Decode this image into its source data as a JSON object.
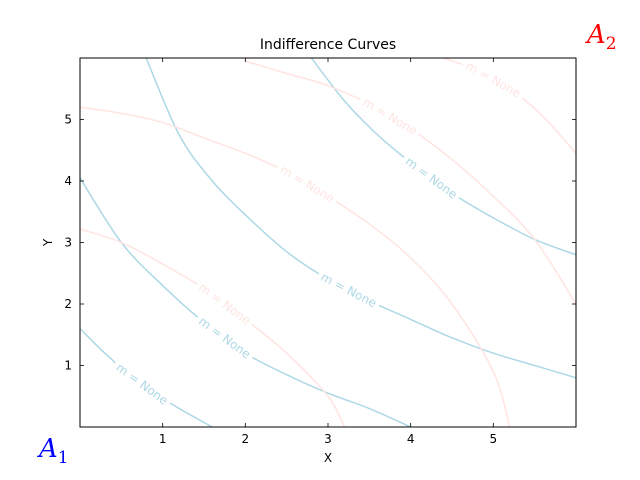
{
  "chart_data": {
    "type": "line",
    "title": "Indifference Curves",
    "xlabel": "X",
    "ylabel": "Y",
    "xlim": [
      0,
      6
    ],
    "ylim": [
      0,
      6
    ],
    "xticks": [
      1,
      2,
      3,
      4,
      5
    ],
    "yticks": [
      1,
      2,
      3,
      4,
      5
    ],
    "grid": false,
    "agents": [
      {
        "label": "A",
        "subscript": "1",
        "color": "#0000ff",
        "corner": "bottom-left"
      },
      {
        "label": "A",
        "subscript": "2",
        "color": "#ff0000",
        "corner": "top-right"
      }
    ],
    "series": [
      {
        "agent": "A1",
        "color": "#add8e6",
        "label": "m = None",
        "x": [
          0,
          0.3,
          0.6,
          0.9,
          1.2,
          1.6
        ],
        "y": [
          1.6,
          1.2,
          0.85,
          0.55,
          0.3,
          0
        ]
      },
      {
        "agent": "A1",
        "color": "#add8e6",
        "label": "m = None",
        "x": [
          0,
          0.5,
          1,
          1.5,
          2,
          2.5,
          3,
          3.5,
          4.0
        ],
        "y": [
          4.05,
          3.0,
          2.3,
          1.7,
          1.2,
          0.85,
          0.55,
          0.3,
          0
        ]
      },
      {
        "agent": "A1",
        "color": "#add8e6",
        "label": "m = None",
        "x": [
          0.8,
          1.2,
          1.6,
          2,
          2.5,
          3,
          3.5,
          4,
          4.5,
          5,
          5.5,
          6
        ],
        "y": [
          6,
          4.75,
          4.0,
          3.45,
          2.85,
          2.4,
          2.05,
          1.75,
          1.45,
          1.2,
          1.0,
          0.8
        ]
      },
      {
        "agent": "A1",
        "color": "#add8e6",
        "label": "m = None",
        "x": [
          2.8,
          3.2,
          3.6,
          4,
          4.5,
          5,
          5.5,
          6
        ],
        "y": [
          6,
          5.3,
          4.75,
          4.3,
          3.8,
          3.4,
          3.05,
          2.8
        ]
      },
      {
        "agent": "A2",
        "color": "#ffe4e1",
        "label": "m = None",
        "x": [
          0,
          0.5,
          1,
          1.5,
          2,
          2.5,
          3,
          3.2
        ],
        "y": [
          3.22,
          3.0,
          2.65,
          2.25,
          1.75,
          1.2,
          0.5,
          0
        ]
      },
      {
        "agent": "A2",
        "color": "#ffe4e1",
        "label": "m = None",
        "x": [
          0,
          0.5,
          1,
          1.5,
          2,
          2.5,
          3,
          3.5,
          4,
          4.5,
          5,
          5.2
        ],
        "y": [
          5.2,
          5.1,
          4.95,
          4.7,
          4.45,
          4.15,
          3.75,
          3.3,
          2.75,
          2.0,
          0.9,
          0
        ]
      },
      {
        "agent": "A2",
        "color": "#ffe4e1",
        "label": "m = None",
        "x": [
          2.0,
          2.5,
          3,
          3.5,
          4,
          4.5,
          5,
          5.5,
          6
        ],
        "y": [
          5.95,
          5.75,
          5.55,
          5.25,
          4.85,
          4.35,
          3.75,
          3.05,
          2.0
        ]
      },
      {
        "agent": "A2",
        "color": "#ffe4e1",
        "label": "m = None",
        "x": [
          4.4,
          4.8,
          5.2,
          5.6,
          6
        ],
        "y": [
          6,
          5.8,
          5.5,
          5.05,
          4.45
        ]
      }
    ]
  }
}
